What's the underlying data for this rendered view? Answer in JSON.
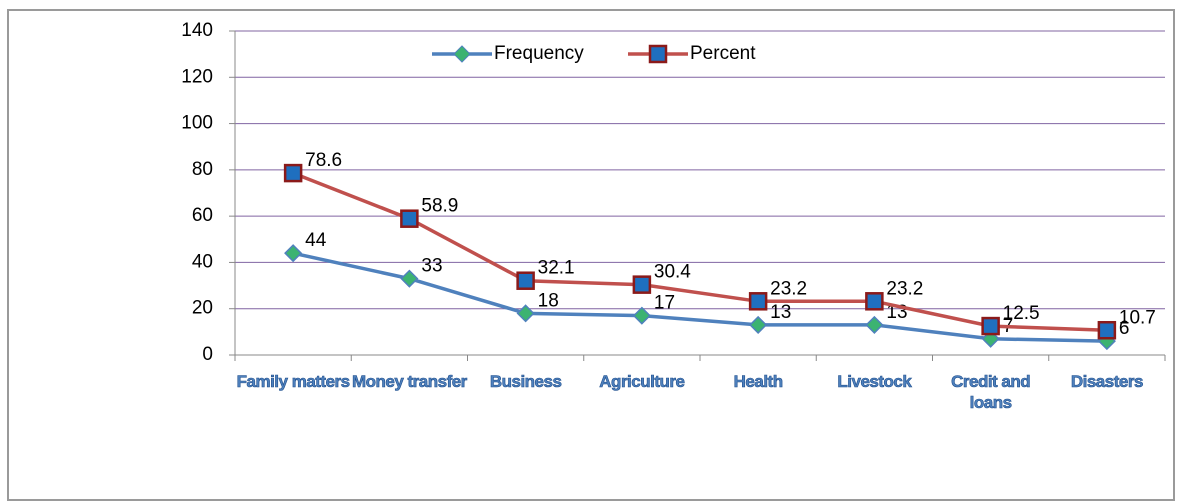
{
  "chart_data": {
    "type": "line",
    "categories": [
      "Family matters",
      "Money transfer",
      "Business",
      "Agriculture",
      "Health",
      "Livestock",
      "Credit and loans",
      "Disasters"
    ],
    "series": [
      {
        "name": "Frequency",
        "color": "#4f81bd",
        "marker_color": "#3cb371",
        "values": [
          44,
          33,
          18,
          17,
          13,
          13,
          7,
          6
        ]
      },
      {
        "name": "Percent",
        "color": "#c0504d",
        "marker_color": "#1f6fbf",
        "values": [
          78.6,
          58.9,
          32.1,
          30.4,
          23.2,
          23.2,
          12.5,
          10.7
        ]
      }
    ],
    "ylim": [
      0,
      140
    ],
    "yticks": [
      0,
      20,
      40,
      60,
      80,
      100,
      120,
      140
    ],
    "grid": true,
    "legend": "top"
  }
}
